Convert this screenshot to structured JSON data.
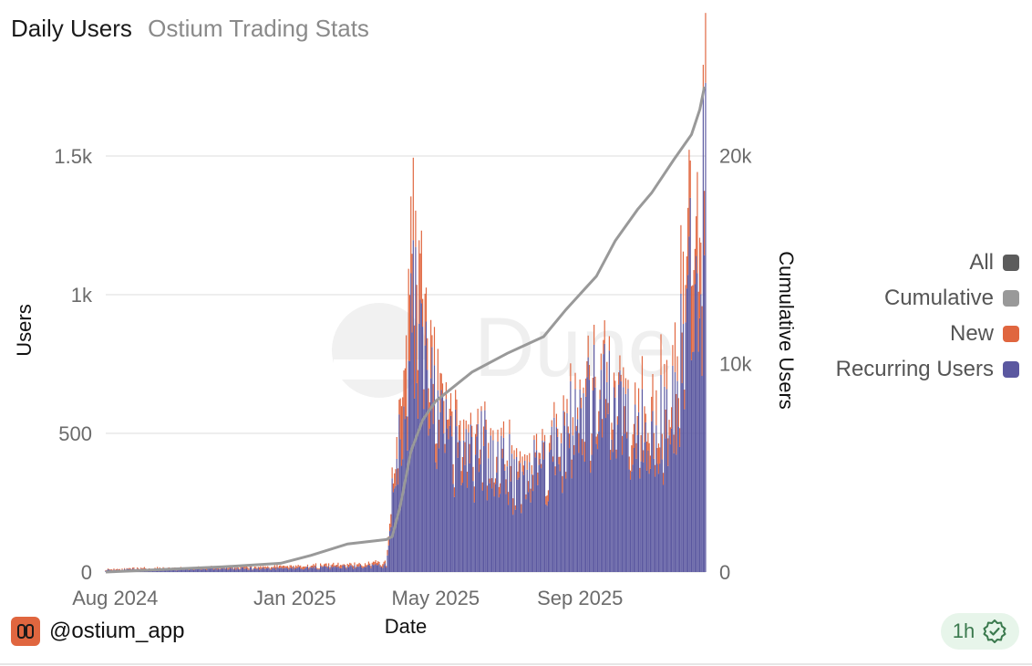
{
  "header": {
    "title": "Daily Users",
    "subtitle": "Ostium Trading Stats"
  },
  "chart_data": {
    "type": "bar",
    "stacked": true,
    "title": "Daily Users",
    "xlabel": "Date",
    "ylabel": "Users",
    "y2label": "Cumulative Users",
    "ylim": [
      0,
      1750
    ],
    "y2lim": [
      0,
      23300
    ],
    "x_range": [
      "2024-07-24",
      "2025-12-17"
    ],
    "yticks": [
      0,
      500,
      1000,
      1500
    ],
    "ytick_labels": [
      "0",
      "500",
      "1k",
      "1.5k"
    ],
    "y2ticks": [
      0,
      10000,
      20000
    ],
    "y2tick_labels": [
      "0",
      "10k",
      "20k"
    ],
    "xticks": [
      {
        "date": "2024-08-01",
        "label": "Aug 2024"
      },
      {
        "date": "2025-01-01",
        "label": "Jan 2025"
      },
      {
        "date": "2025-05-01",
        "label": "May 2025"
      },
      {
        "date": "2025-09-01",
        "label": "Sep 2025"
      }
    ],
    "watermark": "Dune",
    "grid": true,
    "legend_position": "right",
    "colors": {
      "all": "#5c5c5c",
      "cumulative": "#999999",
      "new": "#e0663f",
      "recurring": "#5b58a0"
    },
    "series": [
      {
        "name": "All",
        "role": "total"
      },
      {
        "name": "Cumulative",
        "role": "line",
        "axis": "right",
        "points": [
          [
            "2024-07-24",
            0
          ],
          [
            "2024-11-01",
            250
          ],
          [
            "2024-12-20",
            420
          ],
          [
            "2025-01-15",
            800
          ],
          [
            "2025-02-15",
            1350
          ],
          [
            "2025-03-20",
            1560
          ],
          [
            "2025-03-25",
            1700
          ],
          [
            "2025-04-01",
            3200
          ],
          [
            "2025-04-10",
            5800
          ],
          [
            "2025-04-20",
            7300
          ],
          [
            "2025-05-01",
            8200
          ],
          [
            "2025-06-01",
            9600
          ],
          [
            "2025-07-01",
            10500
          ],
          [
            "2025-08-01",
            11300
          ],
          [
            "2025-08-20",
            12600
          ],
          [
            "2025-09-15",
            14200
          ],
          [
            "2025-10-01",
            15900
          ],
          [
            "2025-10-20",
            17400
          ],
          [
            "2025-11-01",
            18200
          ],
          [
            "2025-11-20",
            19800
          ],
          [
            "2025-12-05",
            21000
          ],
          [
            "2025-12-12",
            22200
          ],
          [
            "2025-12-16",
            23300
          ]
        ]
      },
      {
        "name": "New",
        "role": "stack-top",
        "anchors": [
          [
            "2024-07-24",
            3
          ],
          [
            "2025-03-20",
            10
          ],
          [
            "2025-03-27",
            60
          ],
          [
            "2025-04-05",
            220
          ],
          [
            "2025-04-15",
            260
          ],
          [
            "2025-04-25",
            150
          ],
          [
            "2025-05-15",
            70
          ],
          [
            "2025-06-15",
            45
          ],
          [
            "2025-08-15",
            45
          ],
          [
            "2025-10-01",
            60
          ],
          [
            "2025-11-15",
            110
          ],
          [
            "2025-12-08",
            260
          ],
          [
            "2025-12-16",
            320
          ]
        ]
      },
      {
        "name": "Recurring Users",
        "role": "stack-base",
        "anchors": [
          [
            "2024-07-24",
            8
          ],
          [
            "2024-11-01",
            12
          ],
          [
            "2025-01-01",
            15
          ],
          [
            "2025-03-01",
            20
          ],
          [
            "2025-03-20",
            25
          ],
          [
            "2025-03-27",
            350
          ],
          [
            "2025-04-05",
            650
          ],
          [
            "2025-04-12",
            960
          ],
          [
            "2025-04-20",
            800
          ],
          [
            "2025-05-01",
            560
          ],
          [
            "2025-05-15",
            440
          ],
          [
            "2025-06-01",
            420
          ],
          [
            "2025-06-15",
            450
          ],
          [
            "2025-07-01",
            380
          ],
          [
            "2025-07-15",
            360
          ],
          [
            "2025-08-01",
            400
          ],
          [
            "2025-08-15",
            480
          ],
          [
            "2025-09-01",
            560
          ],
          [
            "2025-09-15",
            620
          ],
          [
            "2025-10-01",
            600
          ],
          [
            "2025-10-15",
            580
          ],
          [
            "2025-11-01",
            540
          ],
          [
            "2025-11-15",
            520
          ],
          [
            "2025-11-25",
            780
          ],
          [
            "2025-12-02",
            1050
          ],
          [
            "2025-12-08",
            900
          ],
          [
            "2025-12-12",
            1150
          ],
          [
            "2025-12-16",
            1420
          ]
        ]
      }
    ]
  },
  "legend": [
    {
      "label": "All",
      "color": "#5c5c5c"
    },
    {
      "label": "Cumulative",
      "color": "#999999"
    },
    {
      "label": "New",
      "color": "#e0663f"
    },
    {
      "label": "Recurring Users",
      "color": "#5b58a0"
    }
  ],
  "footer": {
    "handle": "@ostium_app",
    "logo_icon": "ostium-logo-icon",
    "logo_color": "#e0663f"
  },
  "badge": {
    "text": "1h",
    "icon": "check-badge-icon",
    "color": "#3b7a4e"
  }
}
